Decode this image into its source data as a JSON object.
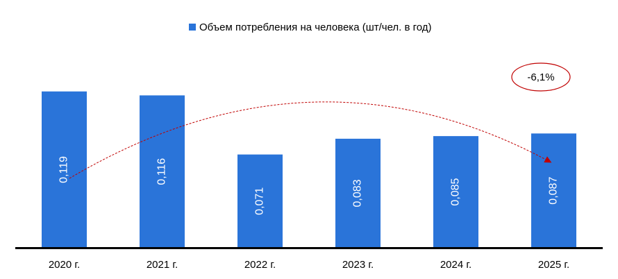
{
  "chart_data": {
    "type": "bar",
    "legend": "Объем потребления на человека (шт/чел. в год)",
    "categories": [
      "2020 г.",
      "2021 г.",
      "2022 г.",
      "2023 г.",
      "2024 г.",
      "2025 г."
    ],
    "values": [
      0.119,
      0.116,
      0.071,
      0.083,
      0.085,
      0.087
    ],
    "value_labels": [
      "0,119",
      "0,116",
      "0,071",
      "0,083",
      "0,085",
      "0,087"
    ],
    "color": "#2a74d9",
    "ylim": [
      0,
      0.14
    ],
    "annotation": "-6,1%"
  }
}
